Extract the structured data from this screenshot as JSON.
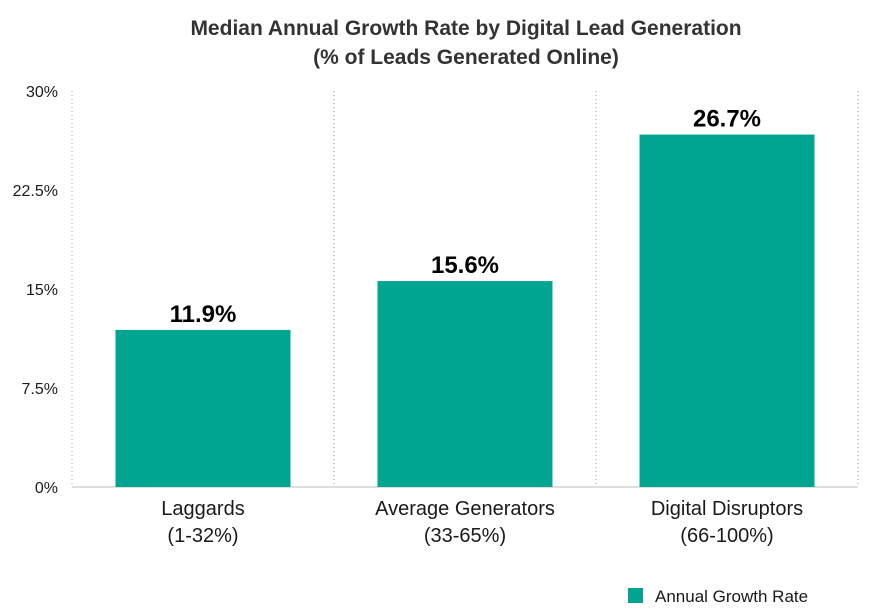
{
  "chart_data": {
    "type": "bar",
    "title": "Median Annual Growth Rate by Digital Lead Generation",
    "subtitle": "(% of Leads Generated Online)",
    "categories": [
      [
        "Laggards",
        "(1-32%)"
      ],
      [
        "Average Generators",
        "(33-65%)"
      ],
      [
        "Digital Disruptors",
        "(66-100%)"
      ]
    ],
    "series": [
      {
        "name": "Annual Growth Rate",
        "values": [
          11.9,
          15.6,
          26.7
        ],
        "color": "#00a591"
      }
    ],
    "data_labels": [
      "11.9%",
      "15.6%",
      "26.7%"
    ],
    "y_ticks": [
      0,
      7.5,
      15,
      22.5,
      30
    ],
    "y_tick_labels": [
      "0%",
      "7.5%",
      "15%",
      "22.5%",
      "30%"
    ],
    "ylim": [
      0,
      30
    ],
    "xlabel": "",
    "ylabel": "",
    "grid": "vertical dotted separators",
    "legend_position": "bottom-right"
  }
}
